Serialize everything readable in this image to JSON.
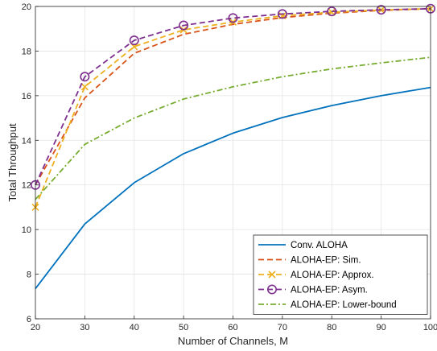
{
  "chart_data": {
    "type": "line",
    "title": "",
    "xlabel": "Number of Channels, M",
    "ylabel": "Total Throughput",
    "xlim": [
      20,
      100
    ],
    "ylim": [
      6,
      20
    ],
    "xticks": [
      20,
      30,
      40,
      50,
      60,
      70,
      80,
      90,
      100
    ],
    "yticks": [
      6,
      8,
      10,
      12,
      14,
      16,
      18,
      20
    ],
    "grid": true,
    "legend_position": "bottom-right",
    "x": [
      20,
      30,
      40,
      50,
      60,
      70,
      80,
      90,
      100
    ],
    "series": [
      {
        "name": "Conv. ALOHA",
        "values": [
          7.35,
          10.25,
          12.1,
          13.4,
          14.32,
          15.02,
          15.56,
          16.0,
          16.37
        ],
        "color": "#0072BD",
        "dash": "solid",
        "marker": "none"
      },
      {
        "name": "ALOHA-EP: Sim.",
        "values": [
          12.0,
          15.9,
          17.9,
          18.75,
          19.2,
          19.5,
          19.7,
          19.82,
          19.9
        ],
        "color": "#D95319",
        "dash": "dashed",
        "marker": "none"
      },
      {
        "name": "ALOHA-EP: Approx.",
        "values": [
          11.0,
          16.4,
          18.2,
          18.95,
          19.3,
          19.58,
          19.74,
          19.84,
          19.9
        ],
        "color": "#EDB120",
        "dash": "dashed",
        "marker": "x"
      },
      {
        "name": "ALOHA-EP: Asym.",
        "values": [
          12.0,
          16.85,
          18.48,
          19.15,
          19.48,
          19.66,
          19.78,
          19.85,
          19.9
        ],
        "color": "#7E2F8E",
        "dash": "dashed",
        "marker": "circle"
      },
      {
        "name": "ALOHA-EP: Lower-bound",
        "values": [
          11.35,
          13.82,
          15.0,
          15.85,
          16.4,
          16.85,
          17.2,
          17.47,
          17.72
        ],
        "color": "#77AC30",
        "dash": "dashdot",
        "marker": "none"
      }
    ]
  }
}
